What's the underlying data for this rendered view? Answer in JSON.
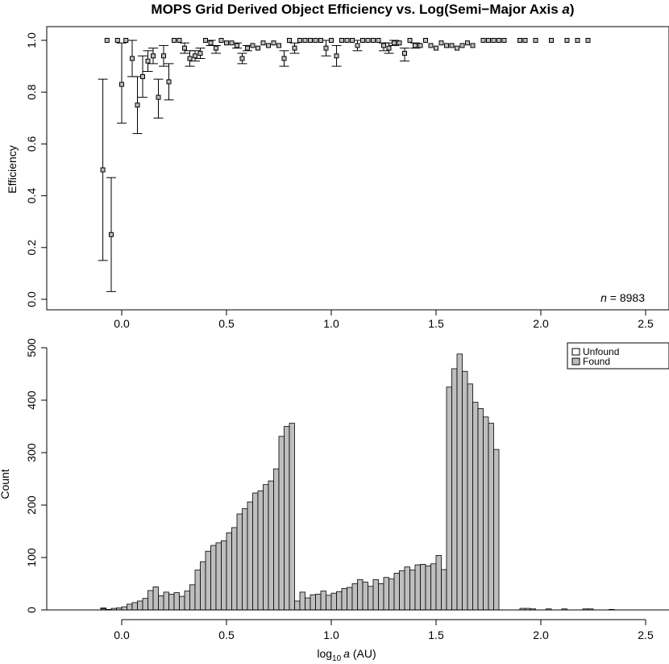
{
  "chart_data": [
    {
      "type": "scatter",
      "title": "MOPS Grid Derived Object Efficiency vs. Log(Semi-Major Axis a)",
      "title_prefix": "MOPS Grid Derived Object Efficiency vs. Log(Semi−Major Axis ",
      "title_var": "a",
      "title_suffix": ")",
      "ylabel": "Efficiency",
      "xlim": [
        -0.34,
        2.6
      ],
      "ylim": [
        -0.02,
        1.02
      ],
      "x_ticks": [
        "0.0",
        "0.5",
        "1.0",
        "1.5",
        "2.0",
        "2.5"
      ],
      "y_ticks": [
        "0.0",
        "0.2",
        "0.4",
        "0.6",
        "0.8",
        "1.0"
      ],
      "annotation": {
        "var": "n",
        "text": " = 8983"
      },
      "points": [
        {
          "x": -0.09,
          "y": 0.5,
          "lo": 0.15,
          "hi": 0.85
        },
        {
          "x": -0.07,
          "y": 1.0
        },
        {
          "x": -0.05,
          "y": 0.25,
          "lo": 0.03,
          "hi": 0.47
        },
        {
          "x": -0.02,
          "y": 1.0
        },
        {
          "x": 0.0,
          "y": 0.83,
          "lo": 0.68,
          "hi": 0.99
        },
        {
          "x": 0.02,
          "y": 1.0
        },
        {
          "x": 0.05,
          "y": 0.93,
          "lo": 0.86,
          "hi": 1.0
        },
        {
          "x": 0.075,
          "y": 0.75,
          "lo": 0.64,
          "hi": 0.86
        },
        {
          "x": 0.1,
          "y": 0.86,
          "lo": 0.78,
          "hi": 0.94
        },
        {
          "x": 0.125,
          "y": 0.92,
          "lo": 0.88,
          "hi": 0.96
        },
        {
          "x": 0.15,
          "y": 0.94,
          "lo": 0.91,
          "hi": 0.97
        },
        {
          "x": 0.175,
          "y": 0.78,
          "lo": 0.7,
          "hi": 0.85
        },
        {
          "x": 0.2,
          "y": 0.94,
          "lo": 0.9,
          "hi": 0.98
        },
        {
          "x": 0.225,
          "y": 0.84,
          "lo": 0.77,
          "hi": 0.91
        },
        {
          "x": 0.25,
          "y": 1.0
        },
        {
          "x": 0.275,
          "y": 1.0
        },
        {
          "x": 0.3,
          "y": 0.97,
          "lo": 0.95,
          "hi": 0.99
        },
        {
          "x": 0.325,
          "y": 0.93,
          "lo": 0.9,
          "hi": 0.96
        },
        {
          "x": 0.35,
          "y": 0.94,
          "lo": 0.92,
          "hi": 0.96
        },
        {
          "x": 0.375,
          "y": 0.95,
          "lo": 0.93,
          "hi": 0.97
        },
        {
          "x": 0.4,
          "y": 1.0
        },
        {
          "x": 0.425,
          "y": 0.99,
          "lo": 0.98,
          "hi": 1.0
        },
        {
          "x": 0.45,
          "y": 0.97,
          "lo": 0.95,
          "hi": 0.98
        },
        {
          "x": 0.475,
          "y": 1.0
        },
        {
          "x": 0.5,
          "y": 0.99
        },
        {
          "x": 0.525,
          "y": 0.99
        },
        {
          "x": 0.55,
          "y": 0.98,
          "lo": 0.97,
          "hi": 0.99
        },
        {
          "x": 0.575,
          "y": 0.93,
          "lo": 0.91,
          "hi": 0.95
        },
        {
          "x": 0.6,
          "y": 0.97,
          "lo": 0.96,
          "hi": 0.98
        },
        {
          "x": 0.625,
          "y": 0.98
        },
        {
          "x": 0.65,
          "y": 0.97
        },
        {
          "x": 0.675,
          "y": 0.99
        },
        {
          "x": 0.7,
          "y": 0.98
        },
        {
          "x": 0.725,
          "y": 0.99
        },
        {
          "x": 0.75,
          "y": 0.98
        },
        {
          "x": 0.775,
          "y": 0.93,
          "lo": 0.9,
          "hi": 0.96
        },
        {
          "x": 0.8,
          "y": 1.0
        },
        {
          "x": 0.825,
          "y": 0.97,
          "lo": 0.95,
          "hi": 0.99
        },
        {
          "x": 0.85,
          "y": 1.0
        },
        {
          "x": 0.875,
          "y": 1.0
        },
        {
          "x": 0.9,
          "y": 1.0
        },
        {
          "x": 0.925,
          "y": 1.0
        },
        {
          "x": 0.95,
          "y": 1.0
        },
        {
          "x": 0.975,
          "y": 0.97,
          "lo": 0.94,
          "hi": 1.0
        },
        {
          "x": 1.0,
          "y": 1.0
        },
        {
          "x": 1.025,
          "y": 0.94,
          "lo": 0.9,
          "hi": 0.98
        },
        {
          "x": 1.05,
          "y": 1.0
        },
        {
          "x": 1.075,
          "y": 1.0
        },
        {
          "x": 1.1,
          "y": 1.0
        },
        {
          "x": 1.125,
          "y": 0.98,
          "lo": 0.96,
          "hi": 1.0
        },
        {
          "x": 1.15,
          "y": 1.0
        },
        {
          "x": 1.175,
          "y": 1.0
        },
        {
          "x": 1.2,
          "y": 1.0
        },
        {
          "x": 1.225,
          "y": 1.0
        },
        {
          "x": 1.25,
          "y": 0.98,
          "lo": 0.96,
          "hi": 0.99
        },
        {
          "x": 1.275,
          "y": 0.97,
          "lo": 0.95,
          "hi": 0.99
        },
        {
          "x": 1.3,
          "y": 0.99,
          "lo": 0.98,
          "hi": 1.0
        },
        {
          "x": 1.325,
          "y": 0.99
        },
        {
          "x": 1.35,
          "y": 0.95,
          "lo": 0.92,
          "hi": 0.97
        },
        {
          "x": 1.375,
          "y": 1.0
        },
        {
          "x": 1.4,
          "y": 0.98,
          "lo": 0.97,
          "hi": 0.99
        },
        {
          "x": 1.425,
          "y": 0.98
        },
        {
          "x": 1.45,
          "y": 1.0
        },
        {
          "x": 1.475,
          "y": 0.98
        },
        {
          "x": 1.5,
          "y": 0.97
        },
        {
          "x": 1.525,
          "y": 0.99
        },
        {
          "x": 1.55,
          "y": 0.98
        },
        {
          "x": 1.575,
          "y": 0.98
        },
        {
          "x": 1.6,
          "y": 0.97
        },
        {
          "x": 1.625,
          "y": 0.98
        },
        {
          "x": 1.65,
          "y": 0.99
        },
        {
          "x": 1.675,
          "y": 0.98
        },
        {
          "x": 1.725,
          "y": 1.0
        },
        {
          "x": 1.75,
          "y": 1.0
        },
        {
          "x": 1.775,
          "y": 1.0
        },
        {
          "x": 1.8,
          "y": 1.0
        },
        {
          "x": 1.825,
          "y": 1.0
        },
        {
          "x": 1.9,
          "y": 1.0
        },
        {
          "x": 1.925,
          "y": 1.0
        },
        {
          "x": 1.975,
          "y": 1.0
        },
        {
          "x": 2.05,
          "y": 1.0
        },
        {
          "x": 2.125,
          "y": 1.0
        },
        {
          "x": 2.175,
          "y": 1.0
        },
        {
          "x": 2.225,
          "y": 1.0
        }
      ]
    },
    {
      "type": "bar",
      "subtype": "histogram",
      "ylabel": "Count",
      "xlabel": "log10 a (AU)",
      "xlabel_parts": {
        "base": "log",
        "sub": "10",
        "var": "a",
        "unit": " (AU)"
      },
      "xlim": [
        -0.34,
        2.6
      ],
      "ylim": [
        0,
        510
      ],
      "x_ticks": [
        "0.0",
        "0.5",
        "1.0",
        "1.5",
        "2.0",
        "2.5"
      ],
      "y_ticks": [
        "0",
        "100",
        "200",
        "300",
        "400",
        "500"
      ],
      "legend": {
        "position": "top-right",
        "entries": [
          {
            "name": "Unfound",
            "color": "#ffffff"
          },
          {
            "name": "Found",
            "color": "#bebebe"
          }
        ]
      },
      "bin_width": 0.025,
      "bin_start": -0.1,
      "series": [
        {
          "name": "Found",
          "color": "#bebebe",
          "values": [
            2,
            1,
            3,
            4,
            6,
            11,
            14,
            17,
            22,
            37,
            44,
            27,
            34,
            30,
            33,
            26,
            36,
            48,
            76,
            92,
            112,
            123,
            128,
            132,
            147,
            157,
            183,
            193,
            206,
            223,
            227,
            239,
            246,
            269,
            331,
            350,
            356,
            17,
            34,
            23,
            29,
            30,
            36,
            28,
            32,
            35,
            41,
            43,
            50,
            58,
            53,
            45,
            58,
            50,
            62,
            59,
            70,
            75,
            82,
            76,
            86,
            87,
            84,
            88,
            104,
            77,
            425,
            460,
            488,
            455,
            431,
            396,
            384,
            368,
            356,
            306,
            0,
            0,
            0,
            0,
            3,
            3,
            2,
            0,
            0,
            2,
            0,
            0,
            2,
            0,
            0,
            0,
            2,
            2,
            0,
            0,
            0,
            1,
            0,
            0
          ]
        },
        {
          "name": "Unfound",
          "color": "#ffffff",
          "values": [
            2,
            0,
            0,
            0,
            0,
            0,
            0,
            0,
            0,
            0,
            0,
            0,
            0,
            0,
            0,
            0,
            0,
            0,
            0,
            0,
            0,
            0,
            0,
            0,
            0,
            0,
            0,
            0,
            0,
            0,
            0,
            0,
            0,
            0,
            0,
            0,
            0,
            0,
            0,
            0,
            0,
            0,
            0,
            0,
            0,
            0,
            0,
            0,
            0,
            0,
            0,
            0,
            0,
            0,
            0,
            0,
            0,
            0,
            0,
            0,
            0,
            0,
            0,
            0,
            0,
            0,
            0,
            0,
            0,
            0,
            0,
            0,
            0,
            0,
            0,
            0,
            0,
            0,
            0,
            0,
            0,
            0,
            0,
            0,
            0,
            0,
            0,
            0,
            0,
            0,
            0,
            0,
            0,
            0,
            0,
            0,
            0,
            0,
            0,
            0
          ]
        }
      ]
    }
  ]
}
